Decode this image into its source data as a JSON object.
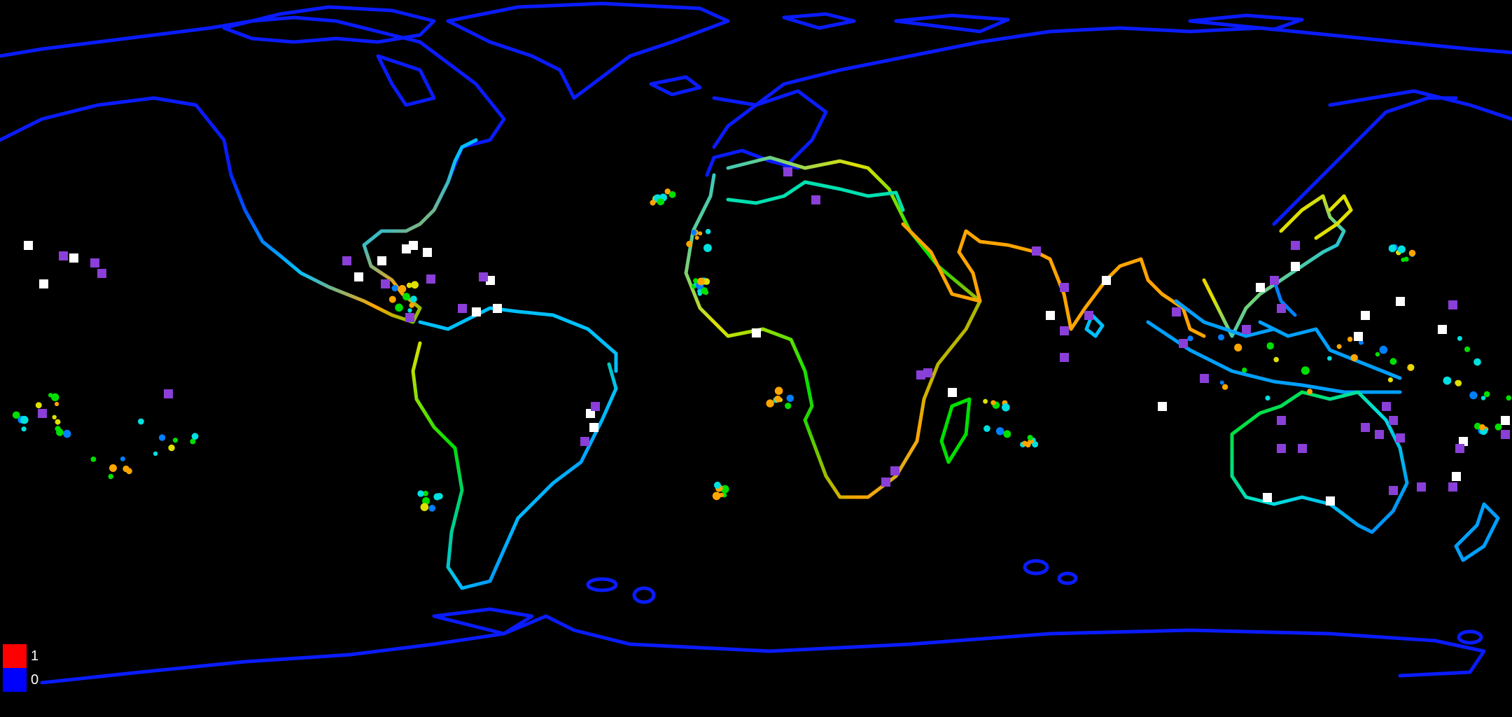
{
  "map": {
    "background_color": "#000000",
    "outline_color": "#0a1cff",
    "marker_white": "#ffffff",
    "marker_purple": "#8a3fd8",
    "colormap": [
      "#0000ff",
      "#0080ff",
      "#00e0e0",
      "#00e000",
      "#e0e000",
      "#ffa500",
      "#ff0000"
    ]
  },
  "legend": {
    "items": [
      {
        "label": "1",
        "color": "#ff0000"
      },
      {
        "label": "0",
        "color": "#0000ff"
      }
    ]
  }
}
